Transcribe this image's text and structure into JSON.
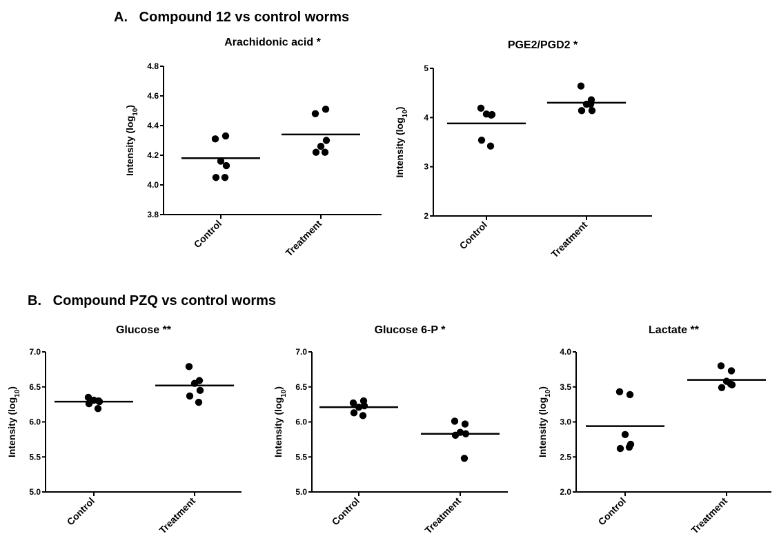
{
  "sections": [
    {
      "letter": "A.",
      "title": "Compound 12 vs control worms"
    },
    {
      "letter": "B.",
      "title": "Compound PZQ vs control worms"
    }
  ],
  "chart_data": [
    {
      "type": "scatter",
      "title": "Arachidonic acid *",
      "ylabel": "Intensity (log",
      "ylabel_sub": "10",
      "ylabel_end": ")",
      "categories": [
        "Control",
        "Treatment"
      ],
      "ylim": [
        3.8,
        4.8
      ],
      "yticks": [
        "3.8",
        "4.0",
        "4.2",
        "4.4",
        "4.6",
        "4.8"
      ],
      "series": [
        {
          "category": "Control",
          "values": [
            4.31,
            4.33,
            4.16,
            4.13,
            4.05,
            4.05
          ],
          "mean": 4.18
        },
        {
          "category": "Treatment",
          "values": [
            4.48,
            4.51,
            4.26,
            4.3,
            4.22,
            4.22
          ],
          "mean": 4.34
        }
      ]
    },
    {
      "type": "scatter",
      "title": "PGE2/PGD2 *",
      "ylabel": "Intensity (log",
      "ylabel_sub": "10",
      "ylabel_end": ")",
      "categories": [
        "Control",
        "Treatment"
      ],
      "ylim": [
        2,
        5
      ],
      "yticks": [
        "2",
        "3",
        "4",
        "5"
      ],
      "series": [
        {
          "category": "Control",
          "values": [
            4.19,
            4.05,
            4.07,
            4.06,
            3.54,
            3.42
          ],
          "mean": 3.88
        },
        {
          "category": "Treatment",
          "values": [
            4.64,
            4.36,
            4.27,
            4.14,
            4.14,
            4.27
          ],
          "mean": 4.3
        }
      ]
    },
    {
      "type": "scatter",
      "title": "Glucose **",
      "ylabel": "Intensity (log",
      "ylabel_sub": "10",
      "ylabel_end": ")",
      "categories": [
        "Control",
        "Treatment"
      ],
      "ylim": [
        5.0,
        7.0
      ],
      "yticks": [
        "5.0",
        "5.5",
        "6.0",
        "6.5",
        "7.0"
      ],
      "series": [
        {
          "category": "Control",
          "values": [
            6.35,
            6.3,
            6.31,
            6.29,
            6.26,
            6.19
          ],
          "mean": 6.29
        },
        {
          "category": "Treatment",
          "values": [
            6.79,
            6.59,
            6.55,
            6.45,
            6.37,
            6.28
          ],
          "mean": 6.52
        }
      ]
    },
    {
      "type": "scatter",
      "title": "Glucose 6-P *",
      "ylabel": "Intensity (log",
      "ylabel_sub": "10",
      "ylabel_end": ")",
      "categories": [
        "Control",
        "Treatment"
      ],
      "ylim": [
        5.0,
        7.0
      ],
      "yticks": [
        "5.0",
        "5.5",
        "6.0",
        "6.5",
        "7.0"
      ],
      "series": [
        {
          "category": "Control",
          "values": [
            6.27,
            6.3,
            6.21,
            6.23,
            6.13,
            6.09
          ],
          "mean": 6.21
        },
        {
          "category": "Treatment",
          "values": [
            6.01,
            5.97,
            5.85,
            5.83,
            5.81,
            5.48
          ],
          "mean": 5.83
        }
      ]
    },
    {
      "type": "scatter",
      "title": "Lactate **",
      "ylabel": "Intensity (log",
      "ylabel_sub": "10",
      "ylabel_end": ")",
      "categories": [
        "Control",
        "Treatment"
      ],
      "ylim": [
        2.0,
        4.0
      ],
      "yticks": [
        "2.0",
        "2.5",
        "3.0",
        "3.5",
        "4.0"
      ],
      "series": [
        {
          "category": "Control",
          "values": [
            3.43,
            3.39,
            2.82,
            2.68,
            2.62,
            2.64
          ],
          "mean": 2.94
        },
        {
          "category": "Treatment",
          "values": [
            3.8,
            3.73,
            3.58,
            3.53,
            3.49,
            3.54
          ],
          "mean": 3.6
        }
      ]
    }
  ]
}
